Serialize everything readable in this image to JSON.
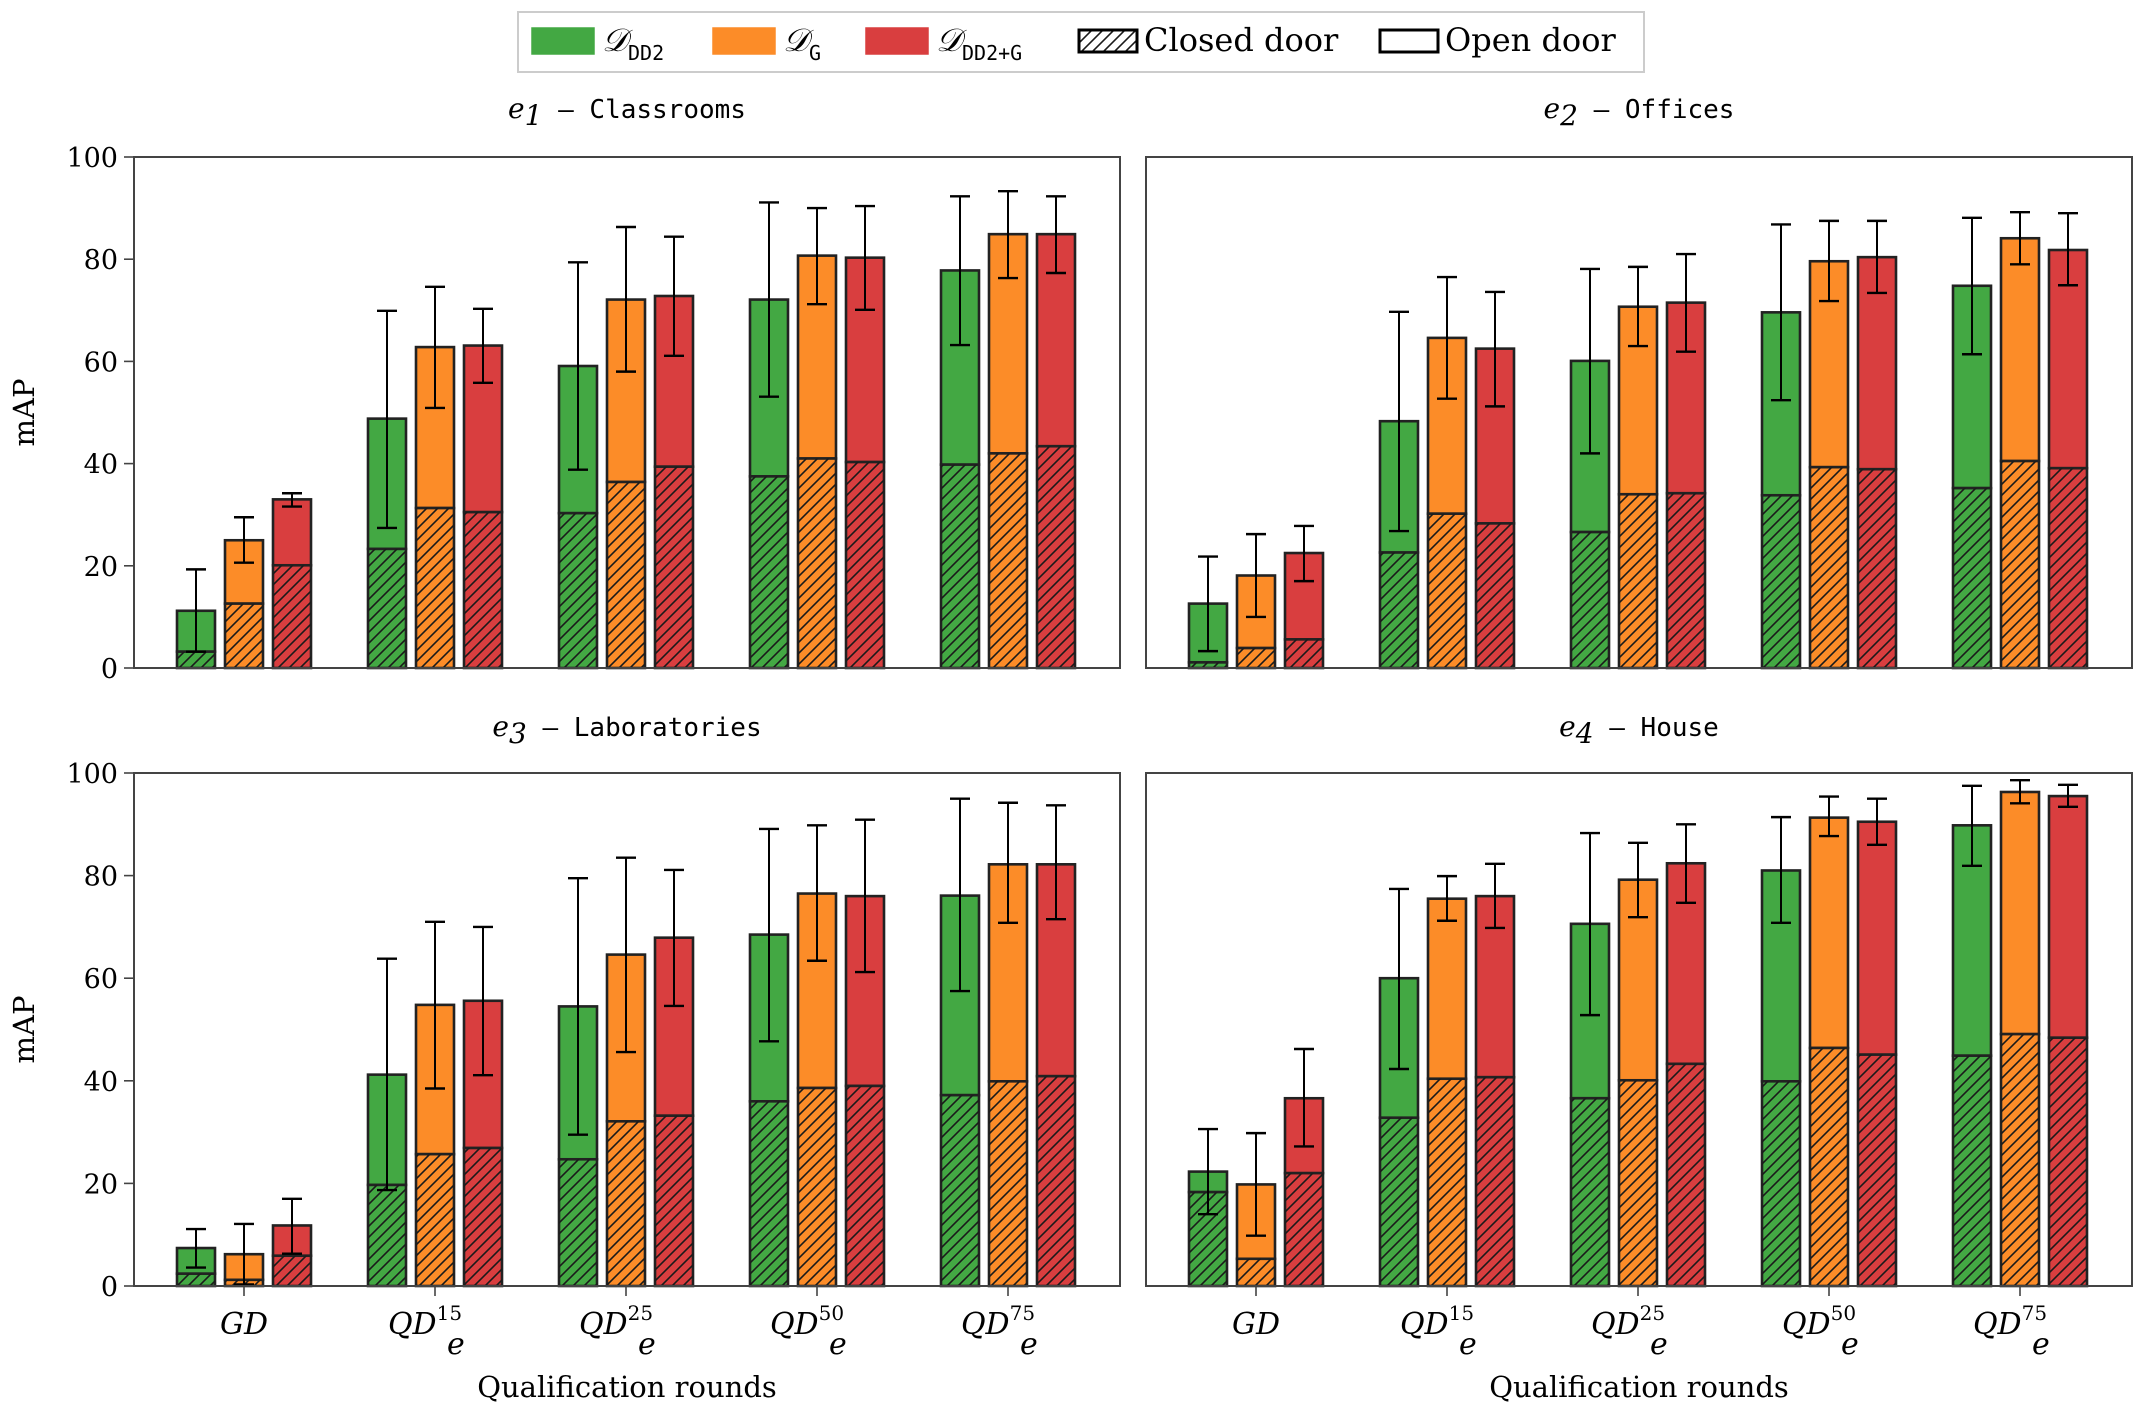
{
  "chart_data": {
    "type": "bar",
    "stacked_segments": [
      "Closed door",
      "Open door"
    ],
    "categories": [
      "GD",
      "QD_e^15",
      "QD_e^25",
      "QD_e^50",
      "QD_e^75"
    ],
    "category_labels": [
      {
        "base": "GD",
        "sup": "",
        "sub": ""
      },
      {
        "base": "QD",
        "sup": "15",
        "sub": "e"
      },
      {
        "base": "QD",
        "sup": "25",
        "sub": "e"
      },
      {
        "base": "QD",
        "sup": "50",
        "sub": "e"
      },
      {
        "base": "QD",
        "sup": "75",
        "sub": "e"
      }
    ],
    "legend": {
      "placement": "top-center",
      "entries": [
        {
          "kind": "series",
          "label": "𝒟",
          "sub": "DD2",
          "color": "#43a843"
        },
        {
          "kind": "series",
          "label": "𝒟",
          "sub": "G",
          "color": "#fc8c28"
        },
        {
          "kind": "series",
          "label": "𝒟",
          "sub": "DD2+G",
          "color": "#d93e3f"
        },
        {
          "kind": "hatch",
          "label": "Closed door"
        },
        {
          "kind": "outline",
          "label": "Open door"
        }
      ]
    },
    "series_colors": [
      "#43a843",
      "#fc8c28",
      "#d93e3f"
    ],
    "series_names": [
      "D_DD2",
      "D_G",
      "D_DD2+G"
    ],
    "ylabel": "mAP",
    "xlabel": "Qualification rounds",
    "ylim": [
      0,
      100
    ],
    "yticks": [
      "0",
      "20",
      "40",
      "60",
      "80",
      "100"
    ],
    "grid": false,
    "panels": [
      {
        "title_math": "e",
        "title_sub": "1",
        "title_text": " – Classrooms",
        "show_ylabel": true,
        "show_xlabel": false,
        "series": [
          {
            "name": "D_DD2",
            "total": [
              11.2,
              48.8,
              59.1,
              72.1,
              77.8
            ],
            "closed": [
              3.2,
              23.3,
              30.3,
              37.5,
              39.8
            ],
            "err_low": [
              3.2,
              27.4,
              38.8,
              53.1,
              63.2
            ],
            "err_high": [
              19.3,
              69.9,
              79.4,
              91.1,
              92.3
            ]
          },
          {
            "name": "D_G",
            "total": [
              25.0,
              62.8,
              72.1,
              80.7,
              84.9
            ],
            "closed": [
              12.6,
              31.3,
              36.4,
              41.0,
              42.0
            ],
            "err_low": [
              20.6,
              50.9,
              58.0,
              71.2,
              76.3
            ],
            "err_high": [
              29.5,
              74.6,
              86.3,
              90.0,
              93.3
            ]
          },
          {
            "name": "D_DD2+G",
            "total": [
              33.0,
              63.1,
              72.8,
              80.3,
              84.9
            ],
            "closed": [
              20.1,
              30.5,
              39.4,
              40.3,
              43.4
            ],
            "err_low": [
              31.6,
              55.8,
              61.1,
              70.1,
              77.3
            ],
            "err_high": [
              34.2,
              70.3,
              84.4,
              90.4,
              92.3
            ]
          }
        ]
      },
      {
        "title_math": "e",
        "title_sub": "2",
        "title_text": " – Offices",
        "show_ylabel": false,
        "show_xlabel": false,
        "series": [
          {
            "name": "D_DD2",
            "total": [
              12.6,
              48.3,
              60.1,
              69.6,
              74.8
            ],
            "closed": [
              1.1,
              22.6,
              26.6,
              33.8,
              35.2
            ],
            "err_low": [
              3.3,
              26.8,
              42.0,
              52.4,
              61.4
            ],
            "err_high": [
              21.8,
              69.7,
              78.1,
              86.8,
              88.1
            ]
          },
          {
            "name": "D_G",
            "total": [
              18.1,
              64.6,
              70.7,
              79.6,
              84.1
            ],
            "closed": [
              3.9,
              30.2,
              34.0,
              39.3,
              40.5
            ],
            "err_low": [
              10.0,
              52.7,
              63.0,
              71.8,
              79.0
            ],
            "err_high": [
              26.2,
              76.5,
              78.5,
              87.5,
              89.2
            ]
          },
          {
            "name": "D_DD2+G",
            "total": [
              22.5,
              62.5,
              71.5,
              80.4,
              81.8
            ],
            "closed": [
              5.6,
              28.3,
              34.2,
              38.9,
              39.1
            ],
            "err_low": [
              17.0,
              51.2,
              61.9,
              73.4,
              74.9
            ],
            "err_high": [
              27.8,
              73.6,
              81.0,
              87.5,
              89.0
            ]
          }
        ]
      },
      {
        "title_math": "e",
        "title_sub": "3",
        "title_text": " – Laboratories",
        "show_ylabel": true,
        "show_xlabel": true,
        "series": [
          {
            "name": "D_DD2",
            "total": [
              7.4,
              41.2,
              54.5,
              68.5,
              76.1
            ],
            "closed": [
              2.4,
              19.7,
              24.7,
              36.0,
              37.2
            ],
            "err_low": [
              3.6,
              18.7,
              29.5,
              47.7,
              57.5
            ],
            "err_high": [
              11.1,
              63.8,
              79.5,
              89.1,
              95.0
            ]
          },
          {
            "name": "D_G",
            "total": [
              6.2,
              54.8,
              64.6,
              76.5,
              82.2
            ],
            "closed": [
              1.2,
              25.7,
              32.1,
              38.6,
              39.9
            ],
            "err_low": [
              0.3,
              38.5,
              45.6,
              63.4,
              70.8
            ],
            "err_high": [
              12.1,
              71.0,
              83.5,
              89.8,
              94.2
            ]
          },
          {
            "name": "D_DD2+G",
            "total": [
              11.8,
              55.6,
              67.9,
              76.0,
              82.2
            ],
            "closed": [
              5.9,
              26.9,
              33.2,
              39.0,
              40.9
            ],
            "err_low": [
              6.3,
              41.1,
              54.6,
              61.2,
              71.5
            ],
            "err_high": [
              17.0,
              70.0,
              81.1,
              90.9,
              93.7
            ]
          }
        ]
      },
      {
        "title_math": "e",
        "title_sub": "4",
        "title_text": " – House",
        "show_ylabel": false,
        "show_xlabel": true,
        "series": [
          {
            "name": "D_DD2",
            "total": [
              22.3,
              60.0,
              70.6,
              81.0,
              89.8
            ],
            "closed": [
              18.3,
              32.8,
              36.6,
              39.9,
              44.9
            ],
            "err_low": [
              14.0,
              42.3,
              52.8,
              70.8,
              81.9
            ],
            "err_high": [
              30.6,
              77.4,
              88.3,
              91.4,
              97.5
            ]
          },
          {
            "name": "D_G",
            "total": [
              19.8,
              75.5,
              79.2,
              91.3,
              96.3
            ],
            "closed": [
              5.3,
              40.4,
              40.1,
              46.4,
              49.1
            ],
            "err_low": [
              9.8,
              71.2,
              71.9,
              87.7,
              94.1
            ],
            "err_high": [
              29.8,
              79.9,
              86.4,
              95.4,
              98.6
            ]
          },
          {
            "name": "D_DD2+G",
            "total": [
              36.6,
              76.0,
              82.4,
              90.5,
              95.5
            ],
            "closed": [
              22.0,
              40.7,
              43.3,
              45.1,
              48.4
            ],
            "err_low": [
              27.2,
              69.8,
              74.7,
              86.0,
              93.4
            ],
            "err_high": [
              46.2,
              82.3,
              90.0,
              95.0,
              97.7
            ]
          }
        ]
      }
    ]
  }
}
